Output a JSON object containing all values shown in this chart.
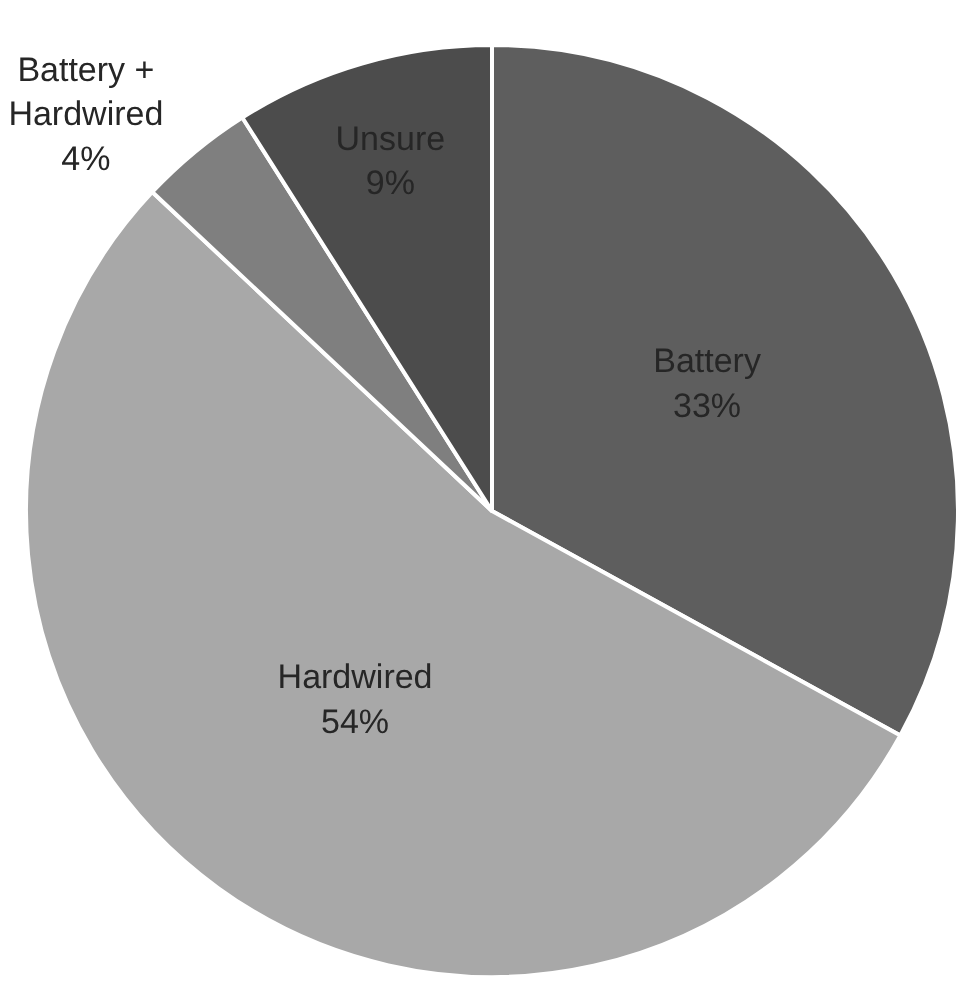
{
  "chart_data": {
    "type": "pie",
    "categories": [
      "Battery",
      "Hardwired",
      "Battery + Hardwired",
      "Unsure"
    ],
    "values": [
      33,
      54,
      4,
      9
    ],
    "value_labels": [
      "33%",
      "54%",
      "4%",
      "9%"
    ],
    "colors": [
      "#5e5e5e",
      "#a8a8a8",
      "#7f7f7f",
      "#4c4c4c"
    ],
    "legend": false
  }
}
